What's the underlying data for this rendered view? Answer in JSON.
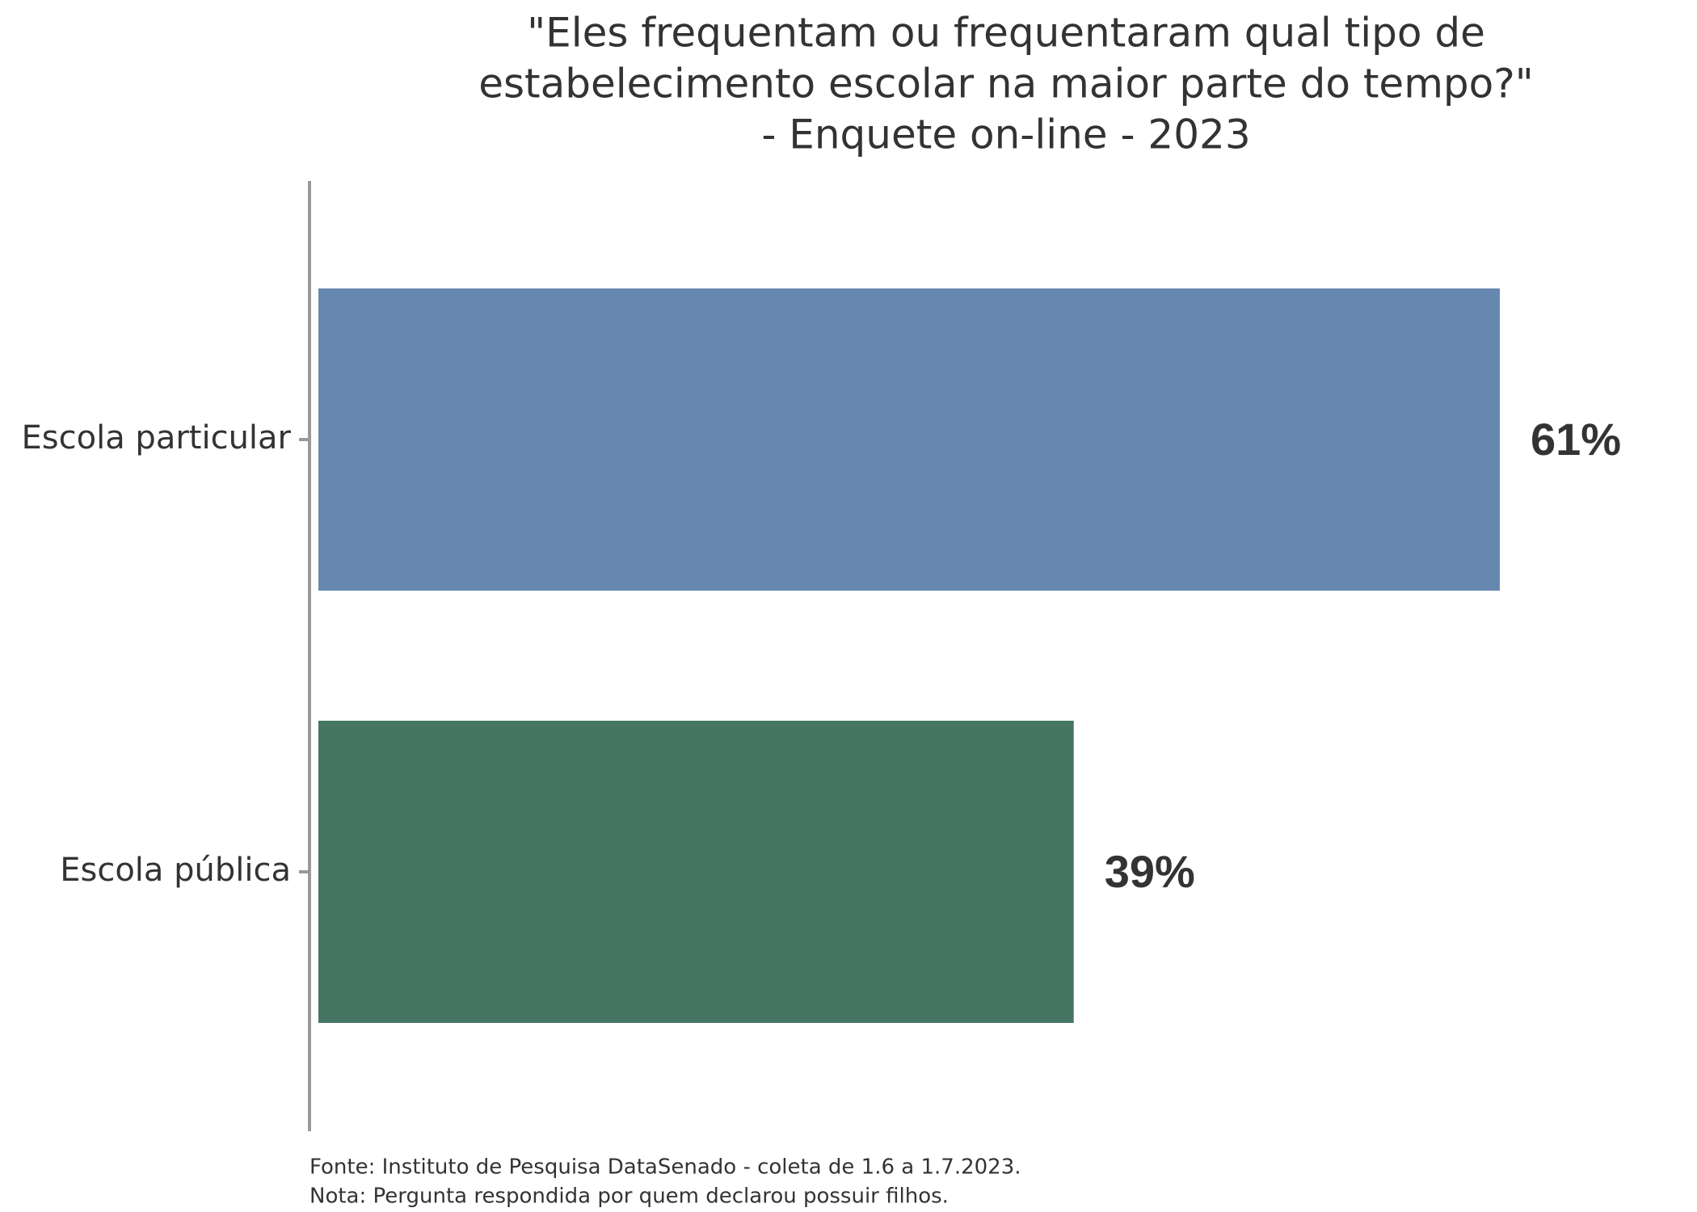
{
  "chart_data": {
    "type": "hbar",
    "title": [
      "\"Eles frequentam ou frequentaram qual tipo de",
      "estabelecimento escolar na maior parte do tempo?\"",
      "- Enquete on-line - 2023"
    ],
    "categories": [
      "Escola particular",
      "Escola pública"
    ],
    "values": [
      61,
      39
    ],
    "value_labels": [
      "61%",
      "39%"
    ],
    "colors": [
      "#6688b0",
      "#467564"
    ],
    "notes": [
      "Fonte: Instituto de Pesquisa DataSenado - coleta de 1.6 a 1.7.2023.",
      "Nota: Pergunta respondida por quem declarou possuir filhos."
    ]
  }
}
